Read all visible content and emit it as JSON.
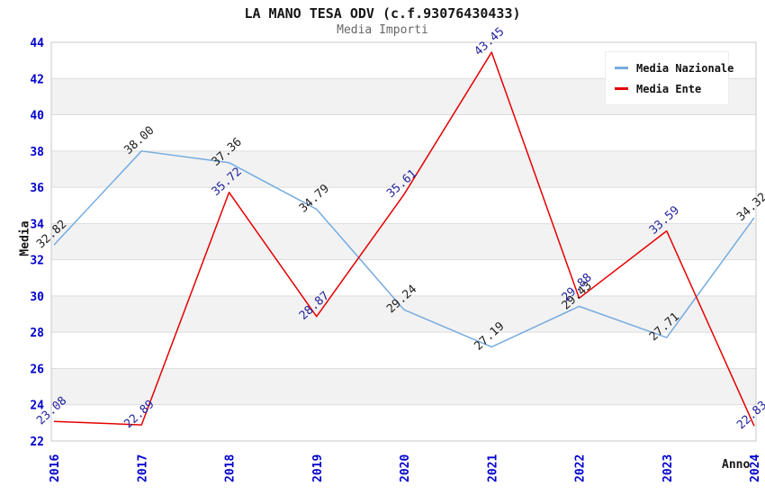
{
  "chart_data": {
    "type": "line",
    "title": "LA MANO TESA ODV (c.f.93076430433)",
    "subtitle": "Media Importi",
    "xlabel": "Anno",
    "ylabel": "Media",
    "x": [
      2016,
      2017,
      2018,
      2019,
      2020,
      2021,
      2022,
      2023,
      2024
    ],
    "ylim": [
      22,
      44
    ],
    "ytick_step": 2,
    "grid": "horizontal-gridlines-with-alternating-bands",
    "legend_position": "top-right",
    "series": [
      {
        "name": "Media Nazionale",
        "color": "#76ace0",
        "label_color": "#1c1c1c",
        "values": [
          32.82,
          38.0,
          37.36,
          34.79,
          29.24,
          27.19,
          29.43,
          27.71,
          34.32
        ]
      },
      {
        "name": "Media Ente",
        "color": "#e60000",
        "label_color": "#22229b",
        "values": [
          23.08,
          22.89,
          35.72,
          28.87,
          35.61,
          43.45,
          29.88,
          33.59,
          22.83
        ]
      }
    ],
    "colors": {
      "tick_label": "#0000cc",
      "band": "#f2f2f2",
      "gridline": "#dddddd",
      "plot_border": "#c8c8c8",
      "title": "#161616",
      "subtitle": "#666666"
    }
  }
}
